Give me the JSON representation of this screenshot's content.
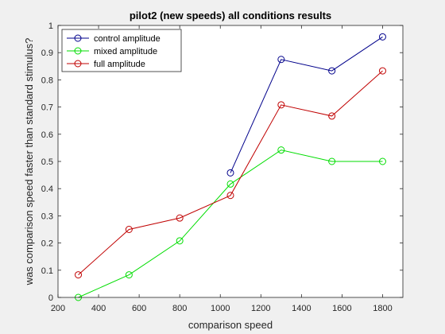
{
  "chart_data": {
    "type": "line",
    "title": "pilot2 (new speeds) all conditions results",
    "xlabel": "comparison speed",
    "ylabel": "was comparison speed faster than standard stimulus?",
    "xlim": [
      200,
      1900
    ],
    "ylim": [
      0,
      1
    ],
    "xticks": [
      200,
      400,
      600,
      800,
      1000,
      1200,
      1400,
      1600,
      1800
    ],
    "yticks": [
      0,
      0.1,
      0.2,
      0.3,
      0.4,
      0.5,
      0.6,
      0.7,
      0.8,
      0.9,
      1
    ],
    "x": [
      300,
      550,
      800,
      1050,
      1300,
      1550,
      1800
    ],
    "grid": false,
    "legend_position": "top-left",
    "marker": "open-circle",
    "series": [
      {
        "name": "control amplitude",
        "color": "#00008b",
        "values": [
          null,
          null,
          null,
          0.458,
          0.875,
          0.833,
          0.958
        ]
      },
      {
        "name": "mixed amplitude",
        "color": "#00dd00",
        "values": [
          0,
          0.083,
          0.208,
          0.417,
          0.542,
          0.5,
          0.5
        ]
      },
      {
        "name": "full amplitude",
        "color": "#c00000",
        "values": [
          0.083,
          0.25,
          0.292,
          0.375,
          0.708,
          0.667,
          0.833
        ]
      }
    ]
  }
}
